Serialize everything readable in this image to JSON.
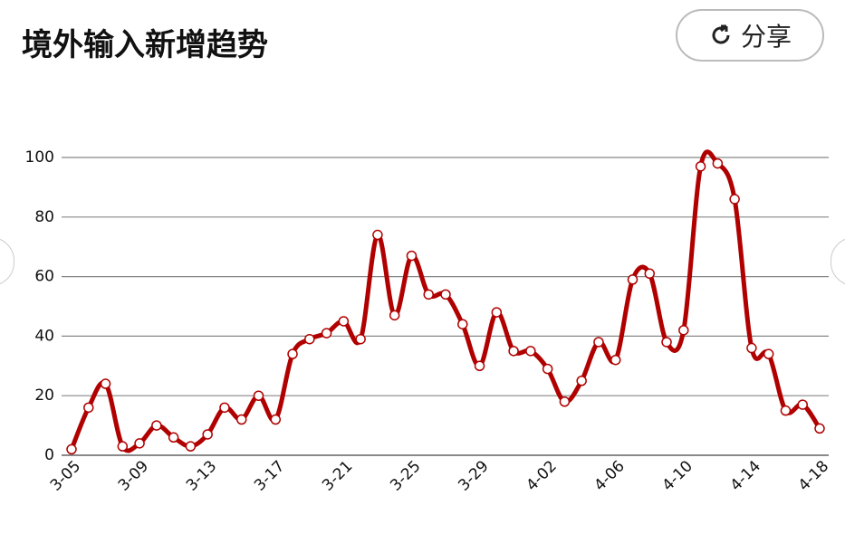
{
  "chart_data": {
    "type": "line",
    "title": "境外输入新增趋势",
    "share_label": "分享",
    "categories": [
      "3-05",
      null,
      null,
      null,
      "3-09",
      null,
      null,
      null,
      "3-13",
      null,
      null,
      null,
      "3-17",
      null,
      null,
      null,
      "3-21",
      null,
      null,
      null,
      "3-25",
      null,
      null,
      null,
      "3-29",
      null,
      null,
      null,
      "4-02",
      null,
      null,
      null,
      "4-06",
      null,
      null,
      null,
      "4-10",
      null,
      null,
      null,
      "4-14",
      null,
      null,
      null,
      "4-18"
    ],
    "values": [
      2,
      16,
      24,
      3,
      4,
      10,
      6,
      3,
      7,
      16,
      12,
      20,
      12,
      34,
      39,
      41,
      45,
      39,
      74,
      47,
      67,
      54,
      54,
      44,
      30,
      48,
      35,
      35,
      29,
      18,
      25,
      38,
      32,
      59,
      61,
      38,
      42,
      97,
      98,
      86,
      36,
      34,
      15,
      17,
      9
    ],
    "color": "#b00000",
    "ylim": [
      0,
      100
    ],
    "yticks": [
      0,
      20,
      40,
      60,
      80,
      100
    ],
    "grid": true
  }
}
